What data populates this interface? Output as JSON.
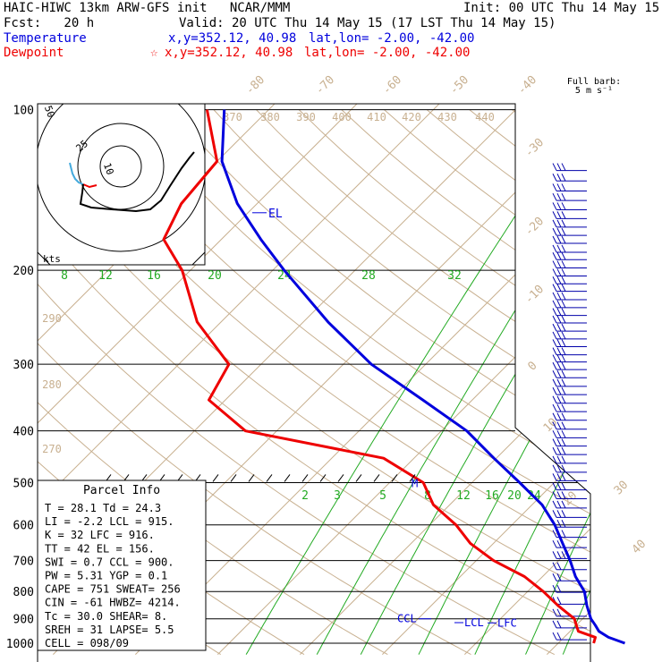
{
  "header": {
    "title": "HAIC-HIWC 13km ARW-GFS init   NCAR/MMM",
    "init": "Init: 00 UTC Thu 14 May 15",
    "fcst": "Fcst:   20 h",
    "valid": "Valid: 20 UTC Thu 14 May 15 (17 LST Thu 14 May 15)",
    "temperature_label": "Temperature",
    "temperature_xy": "x,y=352.12, 40.98",
    "temperature_latlon": "lat,lon= -2.00, -42.00",
    "dewpoint_label": "Dewpoint",
    "dewpoint_marker": "☆",
    "dewpoint_xy": "x,y=352.12, 40.98",
    "dewpoint_latlon": "lat,lon= -2.00, -42.00"
  },
  "colors": {
    "temperature": "#0000dd",
    "dewpoint": "#ee0000",
    "mixing_ratio": "#22aa22",
    "adiabat": "#c8b090",
    "hodograph": "#000000",
    "hodo_low": "#44aadd"
  },
  "barb_label": {
    "line1": "Full barb:",
    "line2": "5 m s⁻¹"
  },
  "parcel_info": {
    "title": "Parcel Info",
    "rows": [
      "T   =   28.1  Td =  24.3",
      "LI  =   -2.2  LCL =  915.",
      "K   =     32  LFC =  916.",
      "TT  =     42  EL  =  156.",
      "SWI =    0.7  CCL =  900.",
      "PW  =   5.31  YGP =   0.1",
      "CAPE =   751  SWEAT=  256",
      "CIN  =   -61  HWBZ= 4214.",
      "Tc  =   30.0  SHEAR=   8.",
      "SREH =    31  LAPSE=  5.5",
      "CELL = 098/09"
    ]
  },
  "chart_data": {
    "type": "line",
    "title": "",
    "ylabel": "",
    "pressure_levels": [
      100,
      200,
      300,
      400,
      500,
      600,
      700,
      800,
      900,
      1000
    ],
    "temp_ticks_top": [
      "-80",
      "-70",
      "-60",
      "-50",
      "-40"
    ],
    "temp_ticks_right": [
      "-30",
      "-20",
      "-10",
      "0",
      "10",
      "20",
      "30",
      "40"
    ],
    "theta_ticks": [
      "370",
      "380",
      "390",
      "400",
      "410",
      "420",
      "430",
      "440",
      "290",
      "280",
      "270"
    ],
    "mixing_ratio_upper": [
      "8",
      "12",
      "16",
      "20",
      "24",
      "28",
      "32"
    ],
    "mixing_ratio_lower": [
      "2",
      "3",
      "5",
      "8",
      "12",
      "16",
      "20",
      "24"
    ],
    "level_labels": {
      "el": "EL",
      "m": "M",
      "ccl": "CCL",
      "lcl": "LCL",
      "lfc": "LFC"
    },
    "series": [
      {
        "name": "Temperature",
        "points": [
          [
            1000,
            28.1
          ],
          [
            975,
            25.4
          ],
          [
            950,
            23.5
          ],
          [
            925,
            22.3
          ],
          [
            900,
            21.0
          ],
          [
            850,
            18.9
          ],
          [
            800,
            16.9
          ],
          [
            750,
            14.0
          ],
          [
            700,
            11.4
          ],
          [
            650,
            8.4
          ],
          [
            600,
            5.2
          ],
          [
            550,
            1.2
          ],
          [
            500,
            -4.2
          ],
          [
            450,
            -10.3
          ],
          [
            400,
            -16.9
          ],
          [
            350,
            -26.0
          ],
          [
            300,
            -36.6
          ],
          [
            250,
            -47.0
          ],
          [
            200,
            -58.6
          ],
          [
            175,
            -65.2
          ],
          [
            150,
            -72.4
          ],
          [
            125,
            -79.4
          ],
          [
            100,
            -85.4
          ]
        ]
      },
      {
        "name": "Dewpoint",
        "points": [
          [
            1000,
            24.3
          ],
          [
            975,
            23.8
          ],
          [
            950,
            21.0
          ],
          [
            925,
            20.0
          ],
          [
            900,
            19.0
          ],
          [
            850,
            15.4
          ],
          [
            800,
            11.9
          ],
          [
            750,
            7.8
          ],
          [
            700,
            2.1
          ],
          [
            650,
            -2.8
          ],
          [
            600,
            -6.8
          ],
          [
            550,
            -12.0
          ],
          [
            500,
            -15.9
          ],
          [
            450,
            -23.7
          ],
          [
            400,
            -43.8
          ],
          [
            350,
            -52.0
          ],
          [
            300,
            -53.9
          ],
          [
            250,
            -62.9
          ],
          [
            200,
            -71.0
          ],
          [
            175,
            -77.0
          ],
          [
            150,
            -79.2
          ],
          [
            125,
            -80.0
          ],
          [
            100,
            -87.5
          ]
        ]
      }
    ],
    "hodograph": {
      "ring_labels": [
        "50",
        "25",
        "10"
      ],
      "units": "kts"
    },
    "wind_barb_levels": [
      130,
      136,
      142,
      148,
      154,
      160,
      166,
      172,
      178,
      185,
      191,
      198,
      205,
      212,
      219,
      227,
      235,
      243,
      251,
      260,
      269,
      278,
      288,
      297,
      307,
      318,
      330,
      342,
      355,
      368,
      382,
      397,
      412,
      427,
      443,
      460,
      478,
      496,
      516,
      536,
      558,
      581,
      606,
      633,
      662,
      694,
      728,
      764,
      803,
      845,
      890,
      936,
      985
    ]
  }
}
